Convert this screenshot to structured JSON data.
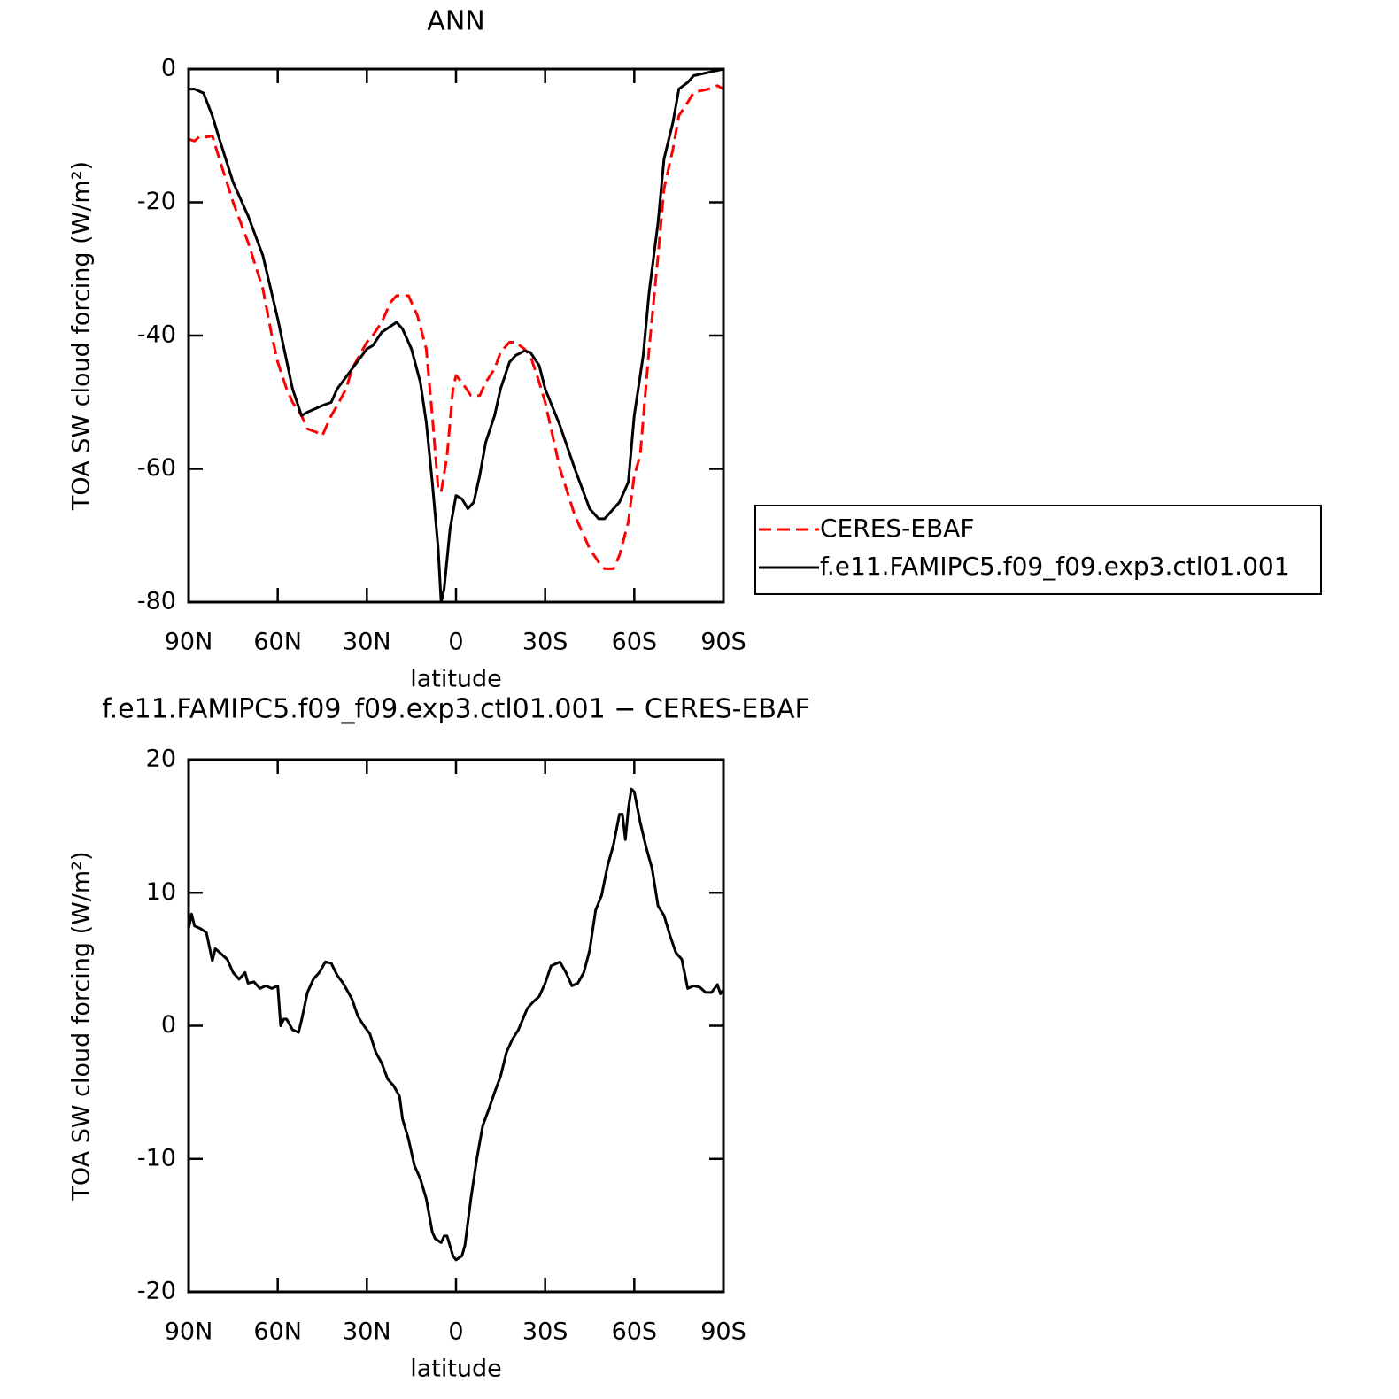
{
  "chart_data": [
    {
      "type": "line",
      "title": "ANN",
      "x_label": "latitude",
      "y_label": "TOA SW cloud forcing (W/m²)",
      "xlim": [
        90,
        -90
      ],
      "xticks": [
        {
          "value": 90,
          "label": "90N"
        },
        {
          "value": 60,
          "label": "60N"
        },
        {
          "value": 30,
          "label": "30N"
        },
        0,
        {
          "value": -30,
          "label": "30S"
        },
        {
          "value": -60,
          "label": "60S"
        },
        {
          "value": -90,
          "label": "90S"
        }
      ],
      "ylim": [
        -80,
        0
      ],
      "yticks": [
        -80,
        -60,
        -40,
        -20,
        0
      ],
      "legend": "outside right",
      "series": [
        {
          "name": "CERES-EBAF",
          "color": "#ff0000",
          "line_style": "dashed",
          "x": [
            90,
            88,
            86,
            84,
            82,
            80,
            75,
            70,
            65,
            62,
            60,
            57,
            55,
            52,
            50,
            47,
            45,
            42,
            40,
            37,
            35,
            30,
            28,
            25,
            22,
            20,
            18,
            16,
            13,
            10,
            8,
            6,
            5,
            3,
            1,
            0,
            -2,
            -5,
            -8,
            -10,
            -13,
            -15,
            -18,
            -20,
            -23,
            -25,
            -28,
            -30,
            -35,
            -40,
            -45,
            -48,
            -50,
            -53,
            -55,
            -58,
            -60,
            -62,
            -65,
            -68,
            -70,
            -73,
            -75,
            -78,
            -80,
            -85,
            -88,
            -90
          ],
          "values": [
            -10.5,
            -10.8,
            -10,
            -10.2,
            -10,
            -13,
            -20,
            -26,
            -33,
            -40,
            -44,
            -48,
            -50,
            -52,
            -54,
            -54.5,
            -55,
            -52,
            -50.5,
            -48,
            -45,
            -41,
            -40,
            -38,
            -35,
            -34,
            -34,
            -34,
            -37,
            -42,
            -52,
            -63,
            -63.5,
            -58,
            -48,
            -46,
            -47,
            -49,
            -49,
            -47,
            -45,
            -42.5,
            -41,
            -41,
            -42,
            -43,
            -47,
            -50,
            -60,
            -67,
            -72,
            -74,
            -75,
            -75,
            -73,
            -68,
            -61,
            -58,
            -42,
            -28,
            -18,
            -12,
            -7,
            -5,
            -3.5,
            -3,
            -2.5,
            -3
          ]
        },
        {
          "name": "f.e11.FAMIPC5.f09_f09.exp3.ctl01.001",
          "color": "#000000",
          "line_style": "solid",
          "x": [
            90,
            88,
            85,
            82,
            80,
            75,
            70,
            65,
            60,
            55,
            52,
            50,
            45,
            42,
            40,
            35,
            30,
            28,
            25,
            20,
            18,
            15,
            12,
            10,
            8,
            6,
            5,
            4,
            2,
            0,
            -2,
            -4,
            -6,
            -8,
            -10,
            -13,
            -15,
            -18,
            -20,
            -23,
            -25,
            -28,
            -30,
            -35,
            -40,
            -45,
            -48,
            -50,
            -55,
            -58,
            -60,
            -63,
            -65,
            -68,
            -70,
            -73,
            -75,
            -78,
            -80,
            -85,
            -90
          ],
          "values": [
            -3,
            -3,
            -3.6,
            -7,
            -10,
            -17,
            -22,
            -28,
            -37.5,
            -48,
            -52,
            -51.5,
            -50.5,
            -50,
            -48,
            -45,
            -42,
            -41.5,
            -39.5,
            -38,
            -39,
            -42,
            -47,
            -53,
            -62,
            -72,
            -80,
            -78,
            -69,
            -64,
            -64.5,
            -66,
            -65,
            -61,
            -56,
            -52,
            -48,
            -44,
            -43,
            -42.3,
            -42.5,
            -44.5,
            -48,
            -53.5,
            -60,
            -66,
            -67.5,
            -67.5,
            -65,
            -62,
            -52,
            -43,
            -33.5,
            -23,
            -13.5,
            -8,
            -3,
            -2,
            -1,
            -0.5,
            0
          ]
        }
      ]
    },
    {
      "type": "line",
      "title": "f.e11.FAMIPC5.f09_f09.exp3.ctl01.001 − CERES-EBAF",
      "x_label": "latitude",
      "y_label": "TOA SW cloud forcing (W/m²)",
      "xlim": [
        90,
        -90
      ],
      "xticks": [
        {
          "value": 90,
          "label": "90N"
        },
        {
          "value": 60,
          "label": "60N"
        },
        {
          "value": 30,
          "label": "30N"
        },
        0,
        {
          "value": -30,
          "label": "30S"
        },
        {
          "value": -60,
          "label": "60S"
        },
        {
          "value": -90,
          "label": "90S"
        }
      ],
      "ylim": [
        -20,
        20
      ],
      "yticks": [
        -20,
        -10,
        0,
        10,
        20
      ],
      "series": [
        {
          "color": "#000000",
          "line_style": "solid",
          "x": [
            90,
            89,
            88,
            86,
            84,
            82,
            81,
            79,
            77,
            75,
            73,
            71,
            70,
            68,
            66,
            64,
            62,
            60,
            59,
            58,
            57,
            55,
            53,
            52,
            50,
            48,
            46,
            44,
            42,
            40,
            38,
            35,
            33,
            31,
            29,
            27,
            25,
            23,
            21,
            19,
            18,
            16,
            14,
            12,
            10,
            8,
            7,
            5,
            4,
            3,
            1,
            0,
            -2,
            -3,
            -5,
            -7,
            -9,
            -11,
            -13,
            -15,
            -17,
            -19,
            -21,
            -24,
            -26,
            -28,
            -30,
            -32,
            -35,
            -37,
            -39,
            -41,
            -43,
            -45,
            -47,
            -49,
            -51,
            -53,
            -55,
            -56,
            -57,
            -58,
            -59,
            -60,
            -62,
            -64,
            -66,
            -68,
            -70,
            -72,
            -74,
            -76,
            -78,
            -80,
            -82,
            -84,
            -86,
            -88,
            -89,
            -90
          ],
          "values": [
            7.3,
            8.4,
            7.5,
            7.3,
            7,
            4.9,
            5.8,
            5.4,
            5,
            4,
            3.5,
            4,
            3.2,
            3.3,
            2.8,
            3,
            2.8,
            3,
            0,
            0.5,
            0.5,
            -0.3,
            -0.5,
            0.4,
            2.5,
            3.5,
            4,
            4.8,
            4.7,
            3.8,
            3.2,
            2,
            0.7,
            0,
            -0.6,
            -2,
            -2.8,
            -4,
            -4.5,
            -5.3,
            -7,
            -8.5,
            -10.5,
            -11.5,
            -13,
            -15.5,
            -16,
            -16.3,
            -15.8,
            -15.8,
            -17.3,
            -17.6,
            -17.3,
            -16.5,
            -13,
            -10,
            -7.5,
            -6.3,
            -5,
            -3.8,
            -2,
            -1,
            -0.3,
            1.3,
            1.8,
            2.2,
            3.2,
            4.5,
            4.8,
            4,
            3,
            3.2,
            4,
            5.7,
            8.7,
            9.8,
            12,
            13.6,
            15.9,
            15.9,
            14,
            16.3,
            17.8,
            17.6,
            15.3,
            13.4,
            11.8,
            9,
            8.3,
            6.8,
            5.5,
            5,
            2.8,
            3,
            2.9,
            2.5,
            2.5,
            3.1,
            2.4,
            2.7
          ]
        }
      ]
    }
  ]
}
